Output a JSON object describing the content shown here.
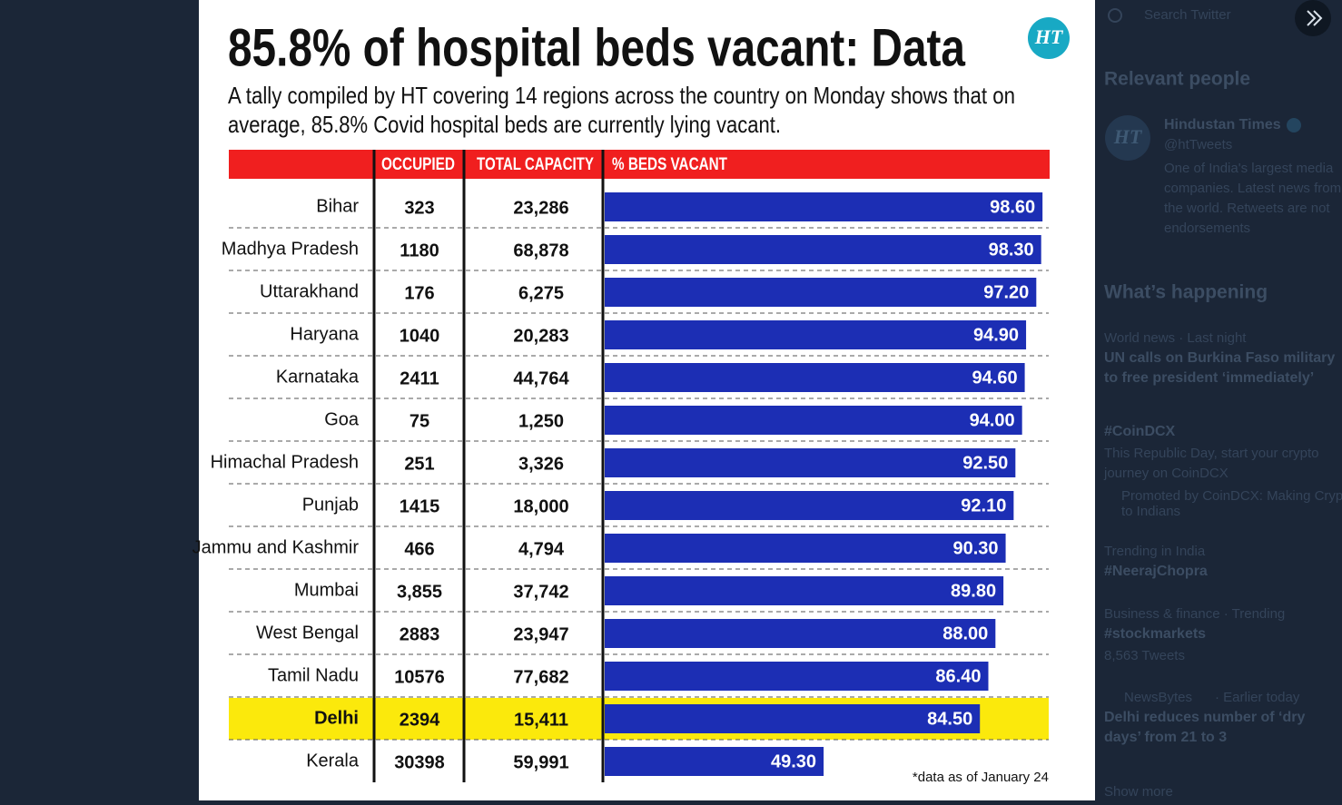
{
  "sidebar": {
    "search": "Search Twitter",
    "relevant_heading": "Relevant people",
    "person": {
      "name": "Hindustan Times",
      "handle": "@htTweets",
      "bio": [
        "One of India's largest media",
        "companies. Latest news from",
        "the world. Retweets are not",
        "endorsements"
      ]
    },
    "happening_heading": "What’s happening",
    "trends": [
      {
        "meta": "World news · Last night",
        "lines": [
          "UN calls on Burkina Faso military",
          "to free president ‘immediately’"
        ]
      },
      {
        "meta": "#CoinDCX",
        "lines": [
          "This Republic Day, start your crypto",
          "journey on CoinDCX"
        ],
        "promo": [
          "Promoted by CoinDCX: Making Crypto",
          "to Indians"
        ]
      },
      {
        "meta": "Trending in India",
        "lines": [
          "#NeerajChopra"
        ]
      },
      {
        "meta": "Business & finance · Trending",
        "lines": [
          "#stockmarkets"
        ],
        "count": "8,563 Tweets"
      },
      {
        "meta": "NewsBytes",
        "time": "· Earlier today",
        "lines": [
          "Delhi reduces number of ‘dry",
          "days’ from 21 to 3"
        ]
      }
    ],
    "show_more": "Show more"
  },
  "infographic": {
    "title": "85.8% of hospital beds vacant: Data",
    "logo": "HT",
    "subtitle": [
      "A tally compiled by HT covering 14 regions across the country on Monday shows that on",
      "average, 85.8% Covid hospital beds are currently lying vacant."
    ],
    "columns": [
      "OCCUPIED",
      "TOTAL CAPACITY",
      "% BEDS VACANT"
    ],
    "rows": [
      {
        "region": "Bihar",
        "occupied": "323",
        "capacity": "23,286"
      },
      {
        "region": "Madhya Pradesh",
        "occupied": "1180",
        "capacity": "68,878"
      },
      {
        "region": "Uttarakhand",
        "occupied": "176",
        "capacity": "6,275"
      },
      {
        "region": "Haryana",
        "occupied": "1040",
        "capacity": "20,283"
      },
      {
        "region": "Karnataka",
        "occupied": "2411",
        "capacity": "44,764"
      },
      {
        "region": "Goa",
        "occupied": "75",
        "capacity": "1,250"
      },
      {
        "region": "Himachal Pradesh",
        "occupied": "251",
        "capacity": "3,326"
      },
      {
        "region": "Punjab",
        "occupied": "1415",
        "capacity": "18,000"
      },
      {
        "region": "Jammu and Kashmir",
        "occupied": "466",
        "capacity": "4,794"
      },
      {
        "region": "Mumbai",
        "occupied": "3,855",
        "capacity": "37,742"
      },
      {
        "region": "West Bengal",
        "occupied": "2883",
        "capacity": "23,947"
      },
      {
        "region": "Tamil Nadu",
        "occupied": "10576",
        "capacity": "77,682"
      },
      {
        "region": "Delhi",
        "occupied": "2394",
        "capacity": "15,411",
        "highlight": "#fbe90c"
      },
      {
        "region": "Kerala",
        "occupied": "30398",
        "capacity": "59,991"
      }
    ],
    "vacant": {
      "color": "#1c2eb4",
      "values": [
        98.6,
        98.3,
        97.2,
        94.9,
        94.6,
        94.0,
        92.5,
        92.1,
        90.3,
        89.8,
        88.0,
        86.4,
        84.5,
        49.3
      ],
      "value_labels": [
        "98.60",
        "98.30",
        "97.20",
        "94.90",
        "94.60",
        "94.00",
        "92.50",
        "92.10",
        "90.30",
        "89.80",
        "88.00",
        "86.40",
        "84.50",
        "49.30"
      ]
    },
    "footnote": "*data as of January 24"
  }
}
